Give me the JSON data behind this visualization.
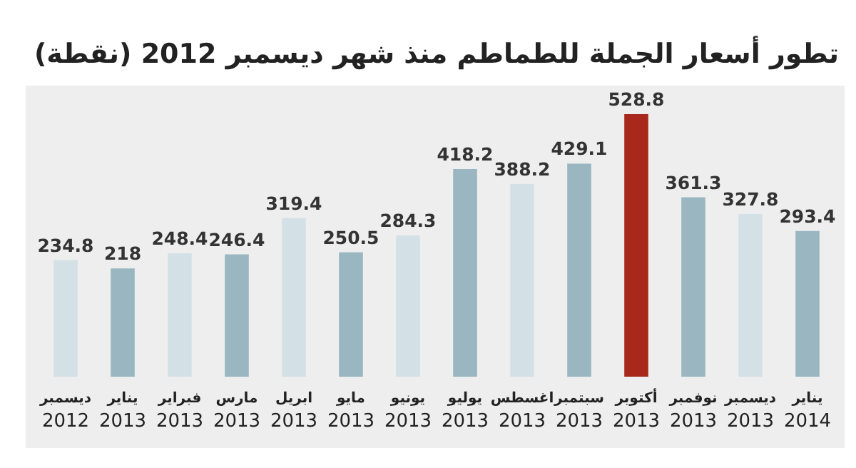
{
  "chart_data": {
    "type": "bar",
    "title": "تطور أسعار الجملة للطماطم منذ شهر ديسمبر 2012 (نقطة)",
    "categories": [
      "ديسمبر\n2012",
      "يناير\n2013",
      "فبراير\n2013",
      "مارس\n2013",
      "ابريل\n2013",
      "مايو\n2013",
      "يونيو\n2013",
      "يوليو\n2013",
      "اغسطس\n2013",
      "سبتمبر\n2013",
      "أكتوبر\n2013",
      "نوفمبر\n2013",
      "ديسمبر\n2013",
      "يناير\n2014"
    ],
    "values": [
      234.8,
      218,
      248.4,
      246.4,
      319.4,
      250.5,
      284.3,
      418.2,
      388.2,
      429.1,
      528.8,
      361.3,
      327.8,
      293.4
    ],
    "colors": [
      "#d3e1e6",
      "#9ab6c1",
      "#d3e1e6",
      "#9ab6c1",
      "#d3e1e6",
      "#9ab6c1",
      "#d3e1e6",
      "#9ab6c1",
      "#d3e1e6",
      "#9ab6c1",
      "#a8281c",
      "#9ab6c1",
      "#d3e1e6",
      "#9ab6c1"
    ],
    "data_labels": true
  }
}
